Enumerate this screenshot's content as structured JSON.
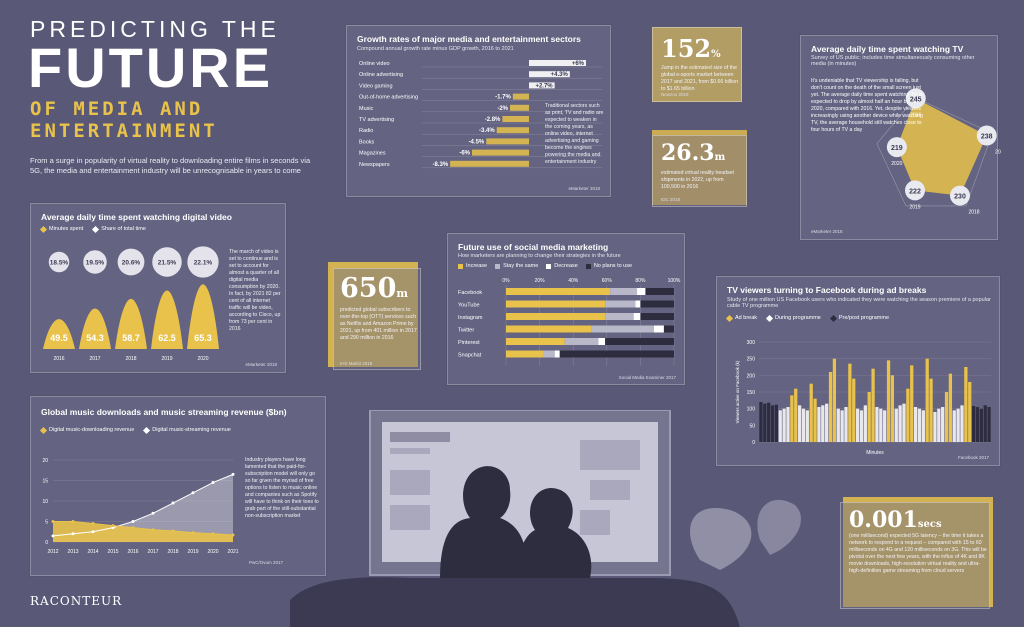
{
  "header": {
    "line1": "PREDICTING THE",
    "line2": "FUTURE",
    "line3": "OF MEDIA AND",
    "line4": "ENTERTAINMENT",
    "intro": "From a surge in popularity of virtual reality to downloading entire films in seconds via 5G, the media and entertainment industry will be unrecognisable in years to come"
  },
  "brand": "RACONTEUR",
  "colors": {
    "gold": "#e8c24a",
    "bg": "#595877",
    "white": "#ffffff",
    "dark": "#3b3a52"
  },
  "growth": {
    "title": "Growth rates of major media and entertainment sectors",
    "subtitle": "Compound annual growth rate minus GDP growth, 2016 to 2021",
    "note": "Traditional sectors such as print, TV and radio are expected to weaken in the coming years, as online video, internet advertising and gaming become the engines powering the media and entertainment industry",
    "source": "eMarketer 2018"
  },
  "stat152": {
    "value": "152",
    "unit": "%",
    "text": "Jump in the estimated size of the global e-sports market between 2017 and 2021, from $0.66 billion to $1.65 billion",
    "source": "Newzoo 2018"
  },
  "stat26": {
    "value": "26.3",
    "unit": "m",
    "text": "estimated virtual reality headset shipments in 2022, up from 100,500 in 2016",
    "source": "IDC 2018"
  },
  "stat650": {
    "value": "650",
    "unit": "m",
    "text": "predicted global subscribers to over-the-top (OTT) services such as Netflix and Amazon Prime by 2021, up from 401 million in 2017 and 290 million in 2016",
    "source": "IHS Markit 2019"
  },
  "stat0001": {
    "value": "0.001",
    "unit": "secs",
    "text": "(one millisecond) expected 5G latency – the time it takes a network to respond to a request – compared with 15 to 60 milliseconds on 4G and 120 milliseconds on 3G. This will be pivotal over the next few years, with the influx of 4K and 8K movie downloads, high-resolution virtual reality and ultra-high-definition game streaming from cloud servers"
  },
  "tvtime": {
    "title": "Average daily time spent watching TV",
    "subtitle": "Survey of US public; includes time simultaneously consuming other media (in minutes)",
    "note": "It's undeniable that TV viewership is falling, but don't count on the death of the small screen just yet. The average daily time spent watching TV is expected to drop by almost half an hour by 2020, compared with 2016. Yet, despite viewers increasingly using another device while watching TV, the average household still watches close to four hours of TV a day",
    "source": "eMarketer 2018"
  },
  "video": {
    "title": "Average daily time spent watching digital video",
    "legend": [
      "Minutes spent",
      "Share of total time"
    ],
    "note": "The march of video is set to continue and is set to account for almost a quarter of all digital media consumption by 2020. In fact, by 2021 82 per cent of all internet traffic will be video, according to Cisco, up from 73 per cent in 2016",
    "source": "eMarketer 2018"
  },
  "social": {
    "title": "Future use of social media marketing",
    "subtitle": "How marketers are planning to change their strategies in the future",
    "legend": [
      "Increase",
      "Stay the same",
      "Decrease",
      "No plans to use"
    ],
    "source": "Social Media Examiner 2017"
  },
  "adbreaks": {
    "title": "TV viewers turning to Facebook during ad breaks",
    "subtitle": "Study of one million US Facebook users who indicated they were watching the season premiere of a popular cable TV programme",
    "legend": [
      "Ad break",
      "During programme",
      "Pre/post programme"
    ],
    "source": "Facebook 2017"
  },
  "music": {
    "title": "Global music downloads and music streaming revenue ($bn)",
    "legend": [
      "Digital music-downloading revenue",
      "Digital music-streaming revenue"
    ],
    "note": "Industry players have long lamented that the paid-for-subscription model will only go so far given the myriad of free options to listen to music online and companies such as Spotify will have to think on their toes to grab part of the still-substantial non-subscription market",
    "source": "PwC/Ovum 2017"
  },
  "chart_data": [
    {
      "type": "bar",
      "id": "growth",
      "title": "Growth rates of major media and entertainment sectors",
      "categories": [
        "Online video",
        "Online advertising",
        "Video gaming",
        "Out-of-home advertising",
        "Music",
        "TV advertising",
        "Radio",
        "Books",
        "Magazines",
        "Newspapers"
      ],
      "values": [
        6,
        4.3,
        2.7,
        -1.7,
        -2,
        -2.8,
        -3.4,
        -4.5,
        -6,
        -8.3
      ],
      "labels": [
        "+6%",
        "+4.3%",
        "+2.7%",
        "-1.7%",
        "-2%",
        "-2.8%",
        "-3.4%",
        "-4.5%",
        "-6%",
        "-8.3%"
      ]
    },
    {
      "type": "line",
      "id": "tvtime",
      "title": "Average daily time spent watching TV",
      "x": [
        "2016",
        "2017",
        "2018",
        "2019",
        "2020"
      ],
      "values": [
        245,
        238,
        230,
        222,
        219
      ]
    },
    {
      "type": "bar",
      "id": "video",
      "title": "Average daily time spent watching digital video",
      "x": [
        "2016",
        "2017",
        "2018",
        "2019",
        "2020"
      ],
      "series": [
        {
          "name": "Minutes spent",
          "values": [
            49.5,
            54.3,
            58.7,
            62.5,
            65.3
          ],
          "labels": [
            "49.5",
            "54.3",
            "58.7",
            "62.5",
            "65.3"
          ]
        },
        {
          "name": "Share of total time",
          "values": [
            18.5,
            19.5,
            20.6,
            21.5,
            22.1
          ],
          "labels": [
            "18.5%",
            "19.5%",
            "20.6%",
            "21.5%",
            "22.1%"
          ]
        }
      ]
    },
    {
      "type": "bar",
      "id": "social",
      "title": "Future use of social media marketing",
      "categories": [
        "Facebook",
        "YouTube",
        "Instagram",
        "Twitter",
        "Pinterest",
        "Snapchat"
      ],
      "xticks": [
        "0%",
        "20%",
        "40%",
        "60%",
        "80%",
        "100%"
      ],
      "series": [
        {
          "name": "Increase",
          "values": [
            62,
            59,
            59,
            51,
            35,
            22
          ]
        },
        {
          "name": "Stay the same",
          "values": [
            16,
            18,
            17,
            37,
            20,
            7
          ]
        },
        {
          "name": "Decrease",
          "values": [
            5,
            3,
            4,
            6,
            4,
            3
          ]
        },
        {
          "name": "No plans to use",
          "values": [
            17,
            20,
            20,
            6,
            41,
            68
          ]
        }
      ]
    },
    {
      "type": "bar",
      "id": "adbreaks",
      "title": "TV viewers turning to Facebook during ad breaks",
      "ylabel": "Viewers active on Facebook (k)",
      "xlabel": "Minutes",
      "yticks": [
        "0",
        "50",
        "100",
        "150",
        "200",
        "250",
        "300"
      ],
      "ylim": [
        0,
        300
      ],
      "series": [
        {
          "name": "Pre/post programme",
          "values": [
            120,
            115,
            118,
            110,
            112,
            108,
            105,
            100,
            110,
            105
          ]
        },
        {
          "name": "During programme",
          "values": [
            95,
            100,
            105,
            110,
            100,
            95,
            105,
            110,
            115,
            100,
            95,
            105,
            100,
            95,
            110,
            105,
            100,
            95,
            100,
            110,
            115,
            105,
            100,
            95,
            90,
            100,
            105,
            95,
            100,
            110
          ]
        },
        {
          "name": "Ad break",
          "values": [
            140,
            160,
            175,
            130,
            210,
            250,
            235,
            190,
            150,
            220,
            245,
            200,
            160,
            230,
            250,
            190,
            150,
            205,
            225,
            180
          ]
        }
      ]
    },
    {
      "type": "area",
      "id": "music",
      "title": "Global music downloads and music streaming revenue ($bn)",
      "x": [
        "2012",
        "2013",
        "2014",
        "2015",
        "2016",
        "2017",
        "2018",
        "2019",
        "2020",
        "2021"
      ],
      "yticks": [
        "0",
        "5",
        "10",
        "15",
        "20"
      ],
      "ylim": [
        0,
        20
      ],
      "series": [
        {
          "name": "Digital music-downloading revenue",
          "values": [
            5,
            5,
            4.5,
            4,
            3.5,
            3,
            2.7,
            2.3,
            2,
            1.7
          ]
        },
        {
          "name": "Digital music-streaming revenue",
          "values": [
            1.5,
            2,
            2.5,
            3.5,
            5,
            7,
            9.5,
            12,
            14.5,
            16.5
          ]
        }
      ]
    }
  ]
}
